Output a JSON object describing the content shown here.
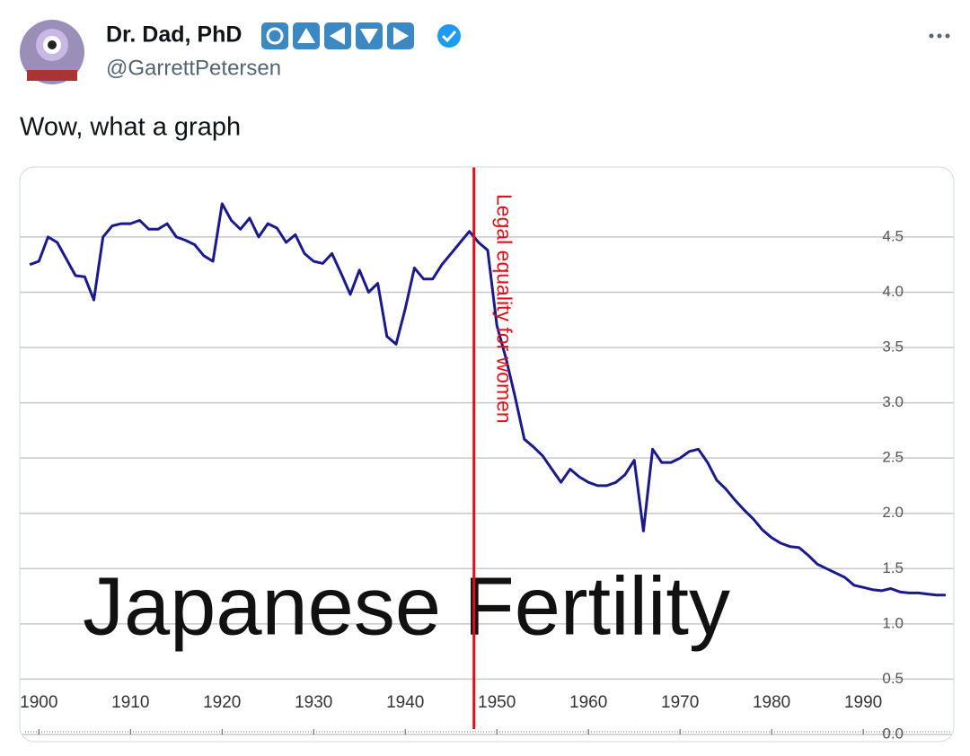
{
  "author": {
    "name": "Dr. Dad, PhD",
    "handle": "@GarrettPetersen"
  },
  "tweet_text": "Wow, what a graph",
  "chart_data": {
    "type": "line",
    "title": "Japanese Fertility",
    "color": "#1a1a8c",
    "annotation": {
      "text": "Legal equality for women",
      "x": 1947.5,
      "color": "#e0101a"
    },
    "x": [
      1899,
      1900,
      1901,
      1902,
      1903,
      1904,
      1905,
      1906,
      1907,
      1908,
      1909,
      1910,
      1911,
      1912,
      1913,
      1914,
      1915,
      1916,
      1917,
      1918,
      1919,
      1920,
      1921,
      1922,
      1923,
      1924,
      1925,
      1926,
      1927,
      1928,
      1929,
      1930,
      1931,
      1932,
      1933,
      1934,
      1935,
      1936,
      1937,
      1938,
      1939,
      1940,
      1941,
      1942,
      1943,
      1944,
      1945,
      1946,
      1947,
      1948,
      1949,
      1950,
      1951,
      1952,
      1953,
      1954,
      1955,
      1956,
      1957,
      1958,
      1959,
      1960,
      1961,
      1962,
      1963,
      1964,
      1965,
      1966,
      1967,
      1968,
      1969,
      1970,
      1971,
      1972,
      1973,
      1974,
      1975,
      1976,
      1977,
      1978,
      1979,
      1980,
      1981,
      1982,
      1983,
      1984,
      1985,
      1986,
      1987,
      1988,
      1989,
      1990,
      1991,
      1992,
      1993,
      1994,
      1995,
      1996,
      1997,
      1998,
      1999
    ],
    "values": [
      4.25,
      4.28,
      4.5,
      4.45,
      4.3,
      4.15,
      4.14,
      3.93,
      4.5,
      4.6,
      4.62,
      4.62,
      4.65,
      4.57,
      4.57,
      4.62,
      4.5,
      4.47,
      4.43,
      4.33,
      4.28,
      4.8,
      4.65,
      4.57,
      4.67,
      4.5,
      4.62,
      4.58,
      4.45,
      4.52,
      4.35,
      4.28,
      4.26,
      4.35,
      4.17,
      3.98,
      4.2,
      4.0,
      4.08,
      3.6,
      3.53,
      3.85,
      4.22,
      4.12,
      4.12,
      4.25,
      4.35,
      4.45,
      4.55,
      4.45,
      4.38,
      3.7,
      3.4,
      3.05,
      2.67,
      2.6,
      2.52,
      2.4,
      2.28,
      2.4,
      2.33,
      2.28,
      2.25,
      2.25,
      2.28,
      2.35,
      2.48,
      1.84,
      2.58,
      2.46,
      2.46,
      2.5,
      2.56,
      2.58,
      2.46,
      2.3,
      2.22,
      2.12,
      2.03,
      1.95,
      1.85,
      1.78,
      1.73,
      1.7,
      1.69,
      1.62,
      1.54,
      1.5,
      1.46,
      1.42,
      1.35,
      1.33,
      1.31,
      1.3,
      1.32,
      1.29,
      1.28,
      1.28,
      1.27,
      1.26,
      1.26
    ],
    "xlim": [
      1898.5,
      1999.5
    ],
    "ylim": [
      0,
      5.1
    ],
    "xticks": [
      1900,
      1910,
      1920,
      1930,
      1940,
      1950,
      1960,
      1970,
      1980,
      1990
    ],
    "yticks": [
      {
        "value": 0,
        "label": "0.0"
      },
      0.5,
      {
        "value": 1,
        "label": "1.0"
      },
      1.5,
      {
        "value": 2,
        "label": "2.0"
      },
      2.5,
      {
        "value": 3,
        "label": "3.0"
      },
      3.5,
      {
        "value": 4,
        "label": "4.0"
      },
      4.5
    ],
    "grid": true
  }
}
